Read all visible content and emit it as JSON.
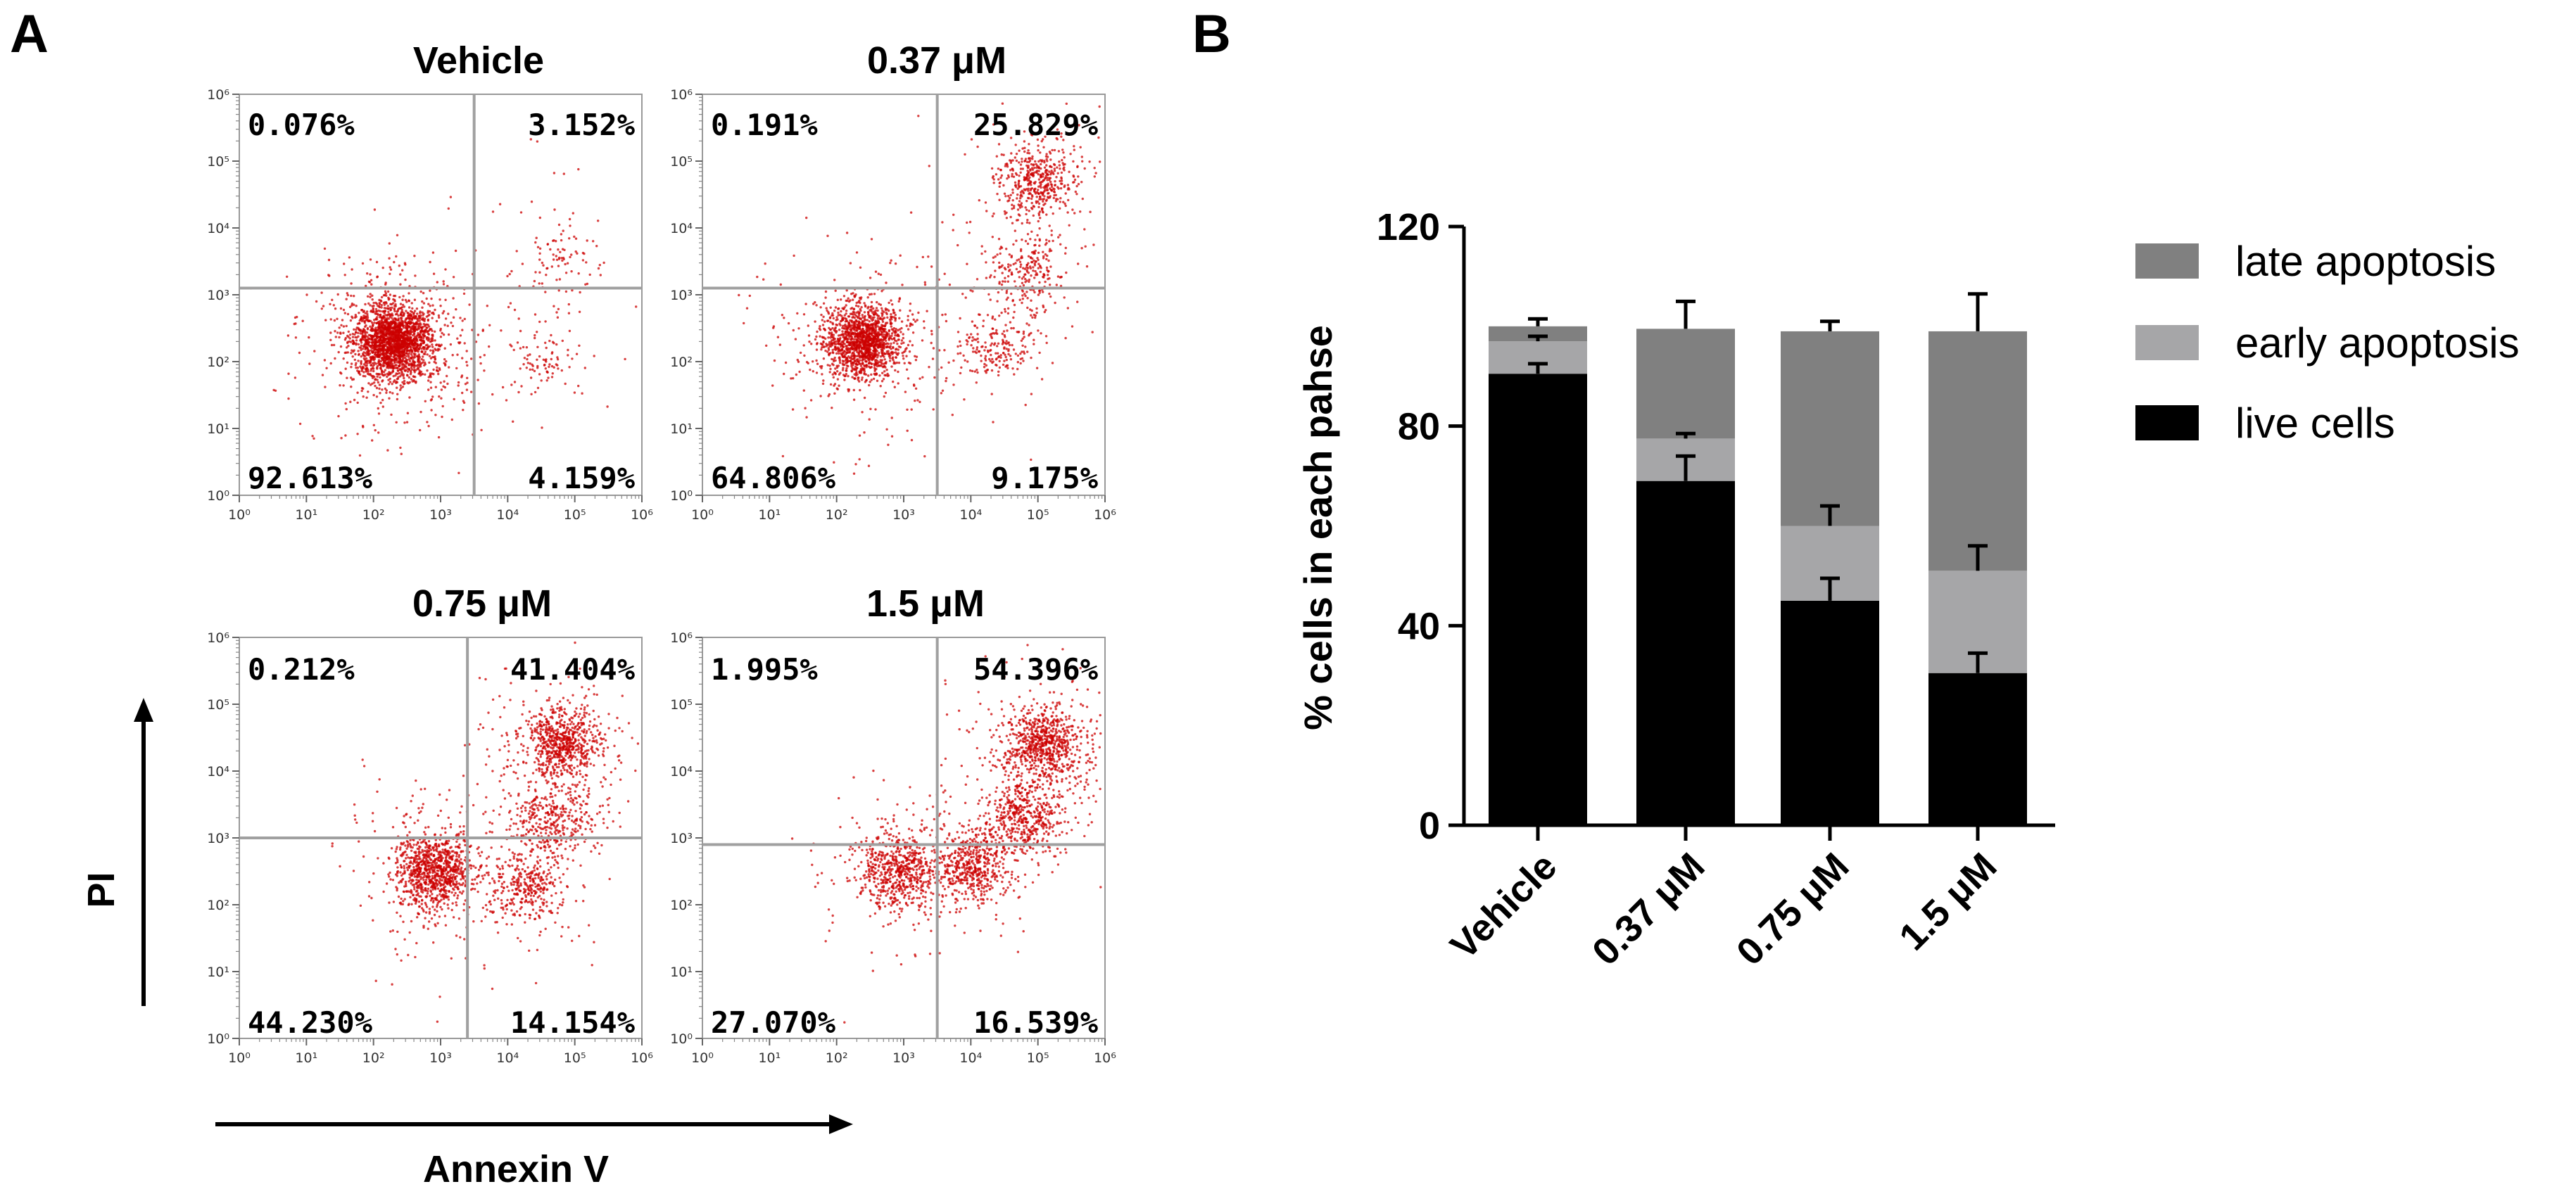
{
  "panels": {
    "a_label": "A",
    "b_label": "B"
  },
  "flow": {
    "x_axis_label": "Annexin V",
    "y_axis_label": "PI",
    "tick_labels": [
      "10⁰",
      "10¹",
      "10²",
      "10³",
      "10⁴",
      "10⁵",
      "10⁶"
    ],
    "plots": [
      {
        "title": "Vehicle",
        "q_ul": "0.076%",
        "q_ur": "3.152%",
        "q_ll": "92.613%",
        "q_lr": "4.159%"
      },
      {
        "title": "0.37 μM",
        "q_ul": "0.191%",
        "q_ur": "25.829%",
        "q_ll": "64.806%",
        "q_lr": "9.175%"
      },
      {
        "title": "0.75 μM",
        "q_ul": "0.212%",
        "q_ur": "41.404%",
        "q_ll": "44.230%",
        "q_lr": "14.154%"
      },
      {
        "title": "1.5 μM",
        "q_ul": "1.995%",
        "q_ur": "54.396%",
        "q_ll": "27.070%",
        "q_lr": "16.539%"
      }
    ],
    "dot_color": "#cc0000"
  },
  "chart_data": [
    {
      "type": "scatter",
      "title": "Vehicle",
      "xlabel": "Annexin V",
      "ylabel": "PI",
      "xscale": "log",
      "yscale": "log",
      "xlim": [
        1,
        1000000
      ],
      "ylim": [
        1,
        1000000
      ],
      "quadrants": {
        "upper_left": 0.076,
        "upper_right": 3.152,
        "lower_left": 92.613,
        "lower_right": 4.159
      },
      "populations": [
        {
          "x_center_log": 2.3,
          "y_center_log": 2.3,
          "weight": 0.92
        },
        {
          "x_center_log": 4.8,
          "y_center_log": 3.6,
          "weight": 0.04
        },
        {
          "x_center_log": 4.5,
          "y_center_log": 2.0,
          "weight": 0.04
        }
      ]
    },
    {
      "type": "scatter",
      "title": "0.37 μM",
      "xlabel": "Annexin V",
      "ylabel": "PI",
      "xscale": "log",
      "yscale": "log",
      "xlim": [
        1,
        1000000
      ],
      "ylim": [
        1,
        1000000
      ],
      "quadrants": {
        "upper_left": 0.191,
        "upper_right": 25.829,
        "lower_left": 64.806,
        "lower_right": 9.175
      },
      "populations": [
        {
          "x_center_log": 2.4,
          "y_center_log": 2.3,
          "weight": 0.62
        },
        {
          "x_center_log": 5.0,
          "y_center_log": 4.7,
          "weight": 0.2
        },
        {
          "x_center_log": 4.8,
          "y_center_log": 3.3,
          "weight": 0.1
        },
        {
          "x_center_log": 4.4,
          "y_center_log": 2.2,
          "weight": 0.08
        }
      ]
    },
    {
      "type": "scatter",
      "title": "0.75 μM",
      "xlabel": "Annexin V",
      "ylabel": "PI",
      "xscale": "log",
      "yscale": "log",
      "xlim": [
        1,
        1000000
      ],
      "ylim": [
        1,
        1000000
      ],
      "quadrants": {
        "upper_left": 0.212,
        "upper_right": 41.404,
        "lower_left": 44.23,
        "lower_right": 14.154
      },
      "populations": [
        {
          "x_center_log": 2.9,
          "y_center_log": 2.5,
          "weight": 0.42
        },
        {
          "x_center_log": 4.8,
          "y_center_log": 4.4,
          "weight": 0.3
        },
        {
          "x_center_log": 4.7,
          "y_center_log": 3.3,
          "weight": 0.14
        },
        {
          "x_center_log": 4.3,
          "y_center_log": 2.3,
          "weight": 0.14
        }
      ]
    },
    {
      "type": "scatter",
      "title": "1.5 μM",
      "xlabel": "Annexin V",
      "ylabel": "PI",
      "xscale": "log",
      "yscale": "log",
      "xlim": [
        1,
        1000000
      ],
      "ylim": [
        1,
        1000000
      ],
      "quadrants": {
        "upper_left": 1.995,
        "upper_right": 54.396,
        "lower_left": 27.07,
        "lower_right": 16.539
      },
      "populations": [
        {
          "x_center_log": 2.9,
          "y_center_log": 2.5,
          "weight": 0.26
        },
        {
          "x_center_log": 5.1,
          "y_center_log": 4.4,
          "weight": 0.32
        },
        {
          "x_center_log": 4.8,
          "y_center_log": 3.3,
          "weight": 0.2
        },
        {
          "x_center_log": 4.0,
          "y_center_log": 2.6,
          "weight": 0.22
        }
      ]
    },
    {
      "type": "bar",
      "stacked": true,
      "title": "",
      "xlabel": "",
      "ylabel": "% cells in each pahse",
      "ylim": [
        0,
        120
      ],
      "yticks": [
        0,
        40,
        80,
        120
      ],
      "categories": [
        "Vehicle",
        "0.37 μM",
        "0.75 μM",
        "1.5 μM"
      ],
      "series": [
        {
          "name": "live cells",
          "color": "#000000",
          "values": [
            90.5,
            69,
            45,
            30.5
          ],
          "errors": [
            2,
            5,
            4.5,
            4
          ]
        },
        {
          "name": "early apoptosis",
          "color": "#a6a6a8",
          "values": [
            6.5,
            8.5,
            15,
            20.5
          ],
          "errors": [
            1,
            1,
            4,
            5
          ]
        },
        {
          "name": "late apoptosis",
          "color": "#808080",
          "values": [
            3,
            22,
            39,
            48
          ],
          "errors": [
            1.5,
            5.5,
            2,
            7.5
          ]
        }
      ],
      "legend_position": "top-right",
      "legend_order": [
        "late apoptosis",
        "early apoptosis",
        "live cells"
      ]
    }
  ]
}
